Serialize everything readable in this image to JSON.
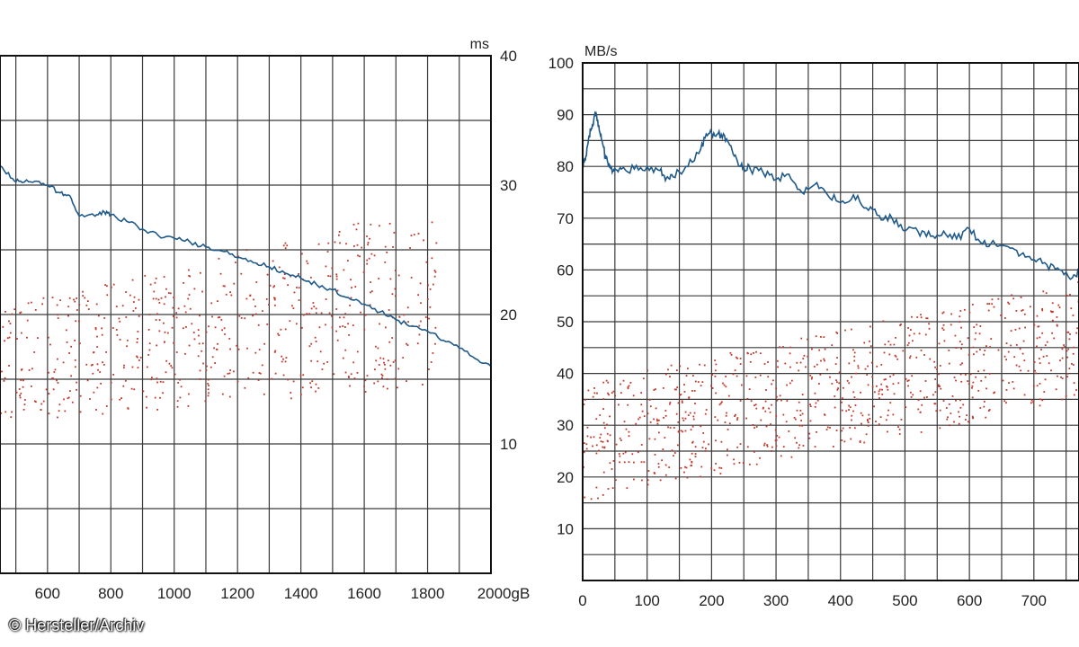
{
  "credit": "© Hersteller/Archiv",
  "colors": {
    "line": "#1f5a8a",
    "dots": "#c0392b",
    "grid": "#3a3a3a",
    "frame": "#111111"
  },
  "chart_data": [
    {
      "type": "line",
      "ylabel": "ms",
      "xlabel_suffix": "gB",
      "x_ticks": [
        600,
        800,
        1000,
        1200,
        1400,
        1600,
        1800,
        2000
      ],
      "x_tick_labels": [
        "600",
        "800",
        "1000",
        "1200",
        "1400",
        "1600",
        "1800",
        "2000gB"
      ],
      "xlim": [
        450,
        2000
      ],
      "y_ticks": [
        10,
        20,
        30,
        40
      ],
      "ylim": [
        0,
        40
      ],
      "grid": true,
      "series": [
        {
          "style": "line",
          "x": [
            450,
            490,
            520,
            560,
            600,
            640,
            670,
            700,
            750,
            780,
            800,
            850,
            900,
            950,
            1000,
            1050,
            1100,
            1150,
            1200,
            1250,
            1300,
            1350,
            1400,
            1450,
            1500,
            1550,
            1600,
            1650,
            1700,
            1750,
            1800,
            1850,
            1900,
            1950,
            2000
          ],
          "y": [
            31.5,
            30.5,
            30.2,
            30.3,
            30.0,
            29.4,
            29.2,
            27.6,
            27.6,
            27.9,
            27.7,
            27.2,
            26.6,
            26.1,
            25.9,
            25.6,
            25.2,
            24.9,
            24.4,
            24.0,
            23.7,
            23.2,
            22.8,
            22.3,
            21.9,
            21.3,
            20.8,
            20.2,
            19.6,
            19.1,
            18.7,
            18.0,
            17.4,
            16.6,
            16.0
          ]
        },
        {
          "style": "scatter",
          "x_range": [
            450,
            1830
          ],
          "band_low": [
            11.5,
            14.5
          ],
          "band_high": [
            20.5,
            28.5
          ],
          "count": 620
        }
      ]
    },
    {
      "type": "line",
      "ylabel": "MB/s",
      "x_ticks": [
        0,
        100,
        200,
        300,
        400,
        500,
        600,
        700
      ],
      "x_tick_labels": [
        "0",
        "100",
        "200",
        "300",
        "400",
        "500",
        "600",
        "700"
      ],
      "xlim": [
        0,
        770
      ],
      "y_ticks": [
        10,
        20,
        30,
        40,
        50,
        60,
        70,
        80,
        90,
        100
      ],
      "ylim": [
        0,
        100
      ],
      "grid": true,
      "series": [
        {
          "style": "line",
          "x": [
            0,
            5,
            10,
            15,
            20,
            25,
            30,
            35,
            40,
            45,
            50,
            60,
            80,
            100,
            120,
            130,
            140,
            160,
            180,
            190,
            200,
            210,
            220,
            230,
            240,
            250,
            260,
            280,
            300,
            320,
            340,
            360,
            380,
            400,
            420,
            440,
            460,
            480,
            500,
            520,
            540,
            560,
            580,
            600,
            620,
            640,
            660,
            680,
            700,
            720,
            740,
            760,
            770
          ],
          "y": [
            80,
            82,
            86,
            88,
            90,
            88,
            85,
            82,
            80,
            79.6,
            79.6,
            79.5,
            79.5,
            80,
            79.2,
            77.8,
            78.0,
            80.0,
            82.5,
            85.5,
            86.5,
            86.3,
            86.0,
            84.0,
            81.0,
            79.8,
            79.5,
            78.8,
            77.5,
            78.5,
            75.0,
            76.5,
            74.5,
            73.0,
            74.5,
            72.0,
            70.5,
            70.0,
            67.5,
            67.5,
            66.5,
            67.5,
            66.0,
            68.0,
            65.0,
            65.0,
            64.5,
            63.0,
            62.0,
            61.0,
            60.0,
            58.5,
            60.0
          ]
        },
        {
          "style": "scatter",
          "x_range": [
            0,
            770
          ],
          "band_low": [
            15,
            35
          ],
          "band_high": [
            38,
            58
          ],
          "count": 820
        }
      ]
    }
  ]
}
